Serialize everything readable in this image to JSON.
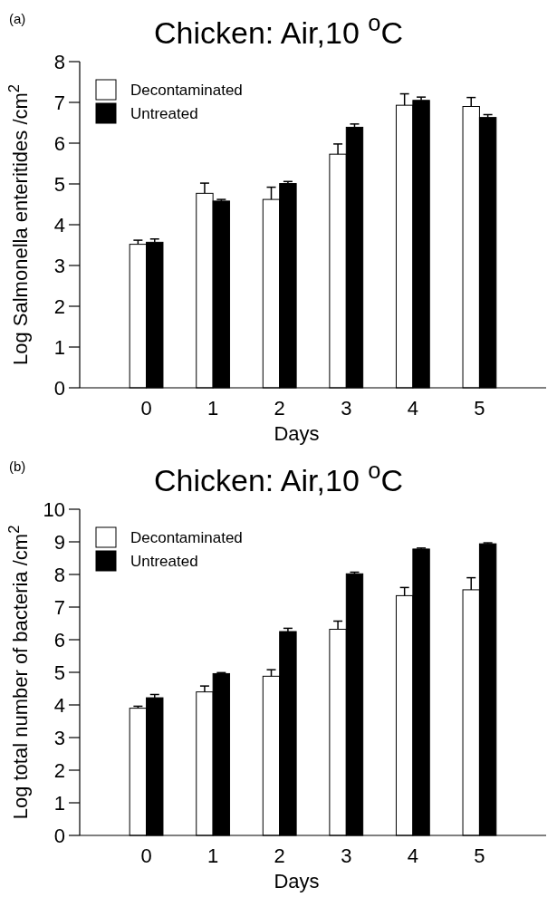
{
  "chart_data": [
    {
      "type": "bar",
      "title": "Chicken: Air,10  $^{o}$C",
      "xlabel": "Days",
      "ylabel": "Log Salmonella enteritides /cm$^{2}$",
      "annotations": [
        "(a)"
      ],
      "categories": [
        "0",
        "1",
        "2",
        "3",
        "4",
        "5"
      ],
      "series": [
        {
          "name": "Decontaminated",
          "color": "#ffffff",
          "values": [
            3.52,
            4.77,
            4.62,
            5.73,
            6.93,
            6.9
          ],
          "errors": [
            [
              3.52,
              3.62
            ],
            [
              4.77,
              5.02
            ],
            [
              4.62,
              4.92
            ],
            [
              5.73,
              5.98
            ],
            [
              6.93,
              7.21
            ],
            [
              6.9,
              7.12
            ]
          ]
        },
        {
          "name": "Untreated",
          "color": "#000000",
          "values": [
            3.57,
            4.58,
            5.01,
            6.39,
            7.05,
            6.63
          ],
          "errors": [
            [
              3.57,
              3.65
            ],
            [
              4.58,
              4.62
            ],
            [
              5.01,
              5.06
            ],
            [
              6.39,
              6.47
            ],
            [
              7.05,
              7.13
            ],
            [
              6.63,
              6.7
            ]
          ]
        }
      ],
      "ylim": [
        0,
        8
      ],
      "yticks": [
        0,
        1,
        2,
        3,
        4,
        5,
        6,
        7,
        8
      ],
      "legend": "top left",
      "grid": false
    },
    {
      "type": "bar",
      "title": "Chicken: Air,10  $^{o}$C",
      "xlabel": "Days",
      "ylabel": "Log total number of bacteria /cm$^{2}$",
      "annotations": [
        "(b)"
      ],
      "categories": [
        "0",
        "1",
        "2",
        "3",
        "4",
        "5"
      ],
      "series": [
        {
          "name": "Decontaminated",
          "color": "#ffffff",
          "values": [
            3.9,
            4.4,
            4.88,
            6.32,
            7.35,
            7.53
          ],
          "errors": [
            [
              3.9,
              3.96
            ],
            [
              4.4,
              4.58
            ],
            [
              4.88,
              5.08
            ],
            [
              6.32,
              6.57
            ],
            [
              7.35,
              7.6
            ],
            [
              7.53,
              7.9
            ]
          ]
        },
        {
          "name": "Untreated",
          "color": "#000000",
          "values": [
            4.22,
            4.96,
            6.25,
            8.02,
            8.78,
            8.94
          ],
          "errors": [
            [
              4.22,
              4.32
            ],
            [
              4.96,
              4.99
            ],
            [
              6.25,
              6.35
            ],
            [
              8.02,
              8.07
            ],
            [
              8.78,
              8.81
            ],
            [
              8.94,
              8.97
            ]
          ]
        }
      ],
      "ylim": [
        0,
        10
      ],
      "yticks": [
        0,
        1,
        2,
        3,
        4,
        5,
        6,
        7,
        8,
        9,
        10
      ],
      "legend": "top left",
      "grid": false
    }
  ]
}
